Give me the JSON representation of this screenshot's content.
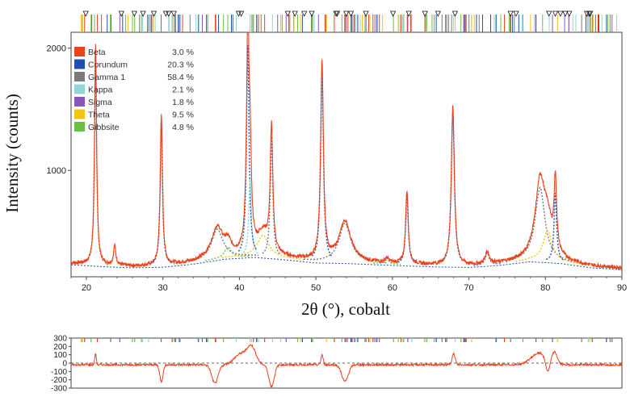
{
  "chart_data": [
    {
      "type": "line",
      "xlabel": "2θ (°), cobalt",
      "ylabel": "Intensity (counts)",
      "xlim": [
        18,
        90
      ],
      "ylim": [
        130,
        2130
      ],
      "x_ticks": [
        20,
        30,
        40,
        50,
        60,
        70,
        80,
        90
      ],
      "y_ticks": [
        1000,
        2000
      ],
      "grid": false,
      "legend_position": "top-left",
      "legend": [
        {
          "name": "Beta",
          "value": "3.0 %",
          "color": "#e8431d"
        },
        {
          "name": "Corundum",
          "value": "20.3 %",
          "color": "#1f4fb0"
        },
        {
          "name": "Gamma 1",
          "value": "58.4 %",
          "color": "#7a7a7a"
        },
        {
          "name": "Kappa",
          "value": "2.1 %",
          "color": "#8fd6d6"
        },
        {
          "name": "Sigma",
          "value": "1.8 %",
          "color": "#8a57b8"
        },
        {
          "name": "Theta",
          "value": "9.5 %",
          "color": "#f2c417"
        },
        {
          "name": "Gibbsite",
          "value": "4.8 %",
          "color": "#6cbf45"
        }
      ],
      "series": [
        {
          "name": "observed",
          "color": "#e8431d",
          "background": [
            [
              18,
              240
            ],
            [
              22,
              225
            ],
            [
              26,
              215
            ],
            [
              30,
              220
            ],
            [
              34,
              245
            ],
            [
              38,
              285
            ],
            [
              42,
              300
            ],
            [
              46,
              280
            ],
            [
              50,
              255
            ],
            [
              54,
              250
            ],
            [
              58,
              240
            ],
            [
              62,
              230
            ],
            [
              66,
              222
            ],
            [
              70,
              218
            ],
            [
              74,
              235
            ],
            [
              78,
              265
            ],
            [
              82,
              250
            ],
            [
              86,
              215
            ],
            [
              90,
              200
            ]
          ],
          "peaks": [
            {
              "x": 21.2,
              "h": 1800,
              "w": 0.16
            },
            {
              "x": 23.7,
              "h": 160,
              "w": 0.18
            },
            {
              "x": 29.8,
              "h": 1220,
              "w": 0.18
            },
            {
              "x": 37.1,
              "h": 250,
              "w": 0.9
            },
            {
              "x": 38.5,
              "h": 90,
              "w": 0.5
            },
            {
              "x": 41.1,
              "h": 1780,
              "w": 0.2
            },
            {
              "x": 41.4,
              "h": 650,
              "w": 0.2
            },
            {
              "x": 43.1,
              "h": 180,
              "w": 0.9
            },
            {
              "x": 44.2,
              "h": 1020,
              "w": 0.2
            },
            {
              "x": 50.8,
              "h": 1610,
              "w": 0.22
            },
            {
              "x": 53.8,
              "h": 330,
              "w": 0.9
            },
            {
              "x": 59.3,
              "h": 35,
              "w": 0.3
            },
            {
              "x": 61.9,
              "h": 600,
              "w": 0.2
            },
            {
              "x": 67.9,
              "h": 1300,
              "w": 0.24
            },
            {
              "x": 72.4,
              "h": 100,
              "w": 0.3
            },
            {
              "x": 79.3,
              "h": 620,
              "w": 0.75
            },
            {
              "x": 80.3,
              "h": 260,
              "w": 0.7
            },
            {
              "x": 81.3,
              "h": 580,
              "w": 0.2
            }
          ]
        }
      ]
    },
    {
      "type": "line",
      "ylim": [
        -300,
        300
      ],
      "y_ticks": [
        300,
        200,
        100,
        0,
        -100,
        -200,
        -300
      ],
      "series": [
        {
          "name": "difference",
          "color": "#e8431d",
          "baseline": -20,
          "features": [
            {
              "x": 21.2,
              "a": 130,
              "w": 0.15
            },
            {
              "x": 29.8,
              "a": -200,
              "w": 0.3
            },
            {
              "x": 36.8,
              "a": -220,
              "w": 0.6
            },
            {
              "x": 40.2,
              "a": 130,
              "w": 1.2
            },
            {
              "x": 41.6,
              "a": 200,
              "w": 0.8
            },
            {
              "x": 44.2,
              "a": -260,
              "w": 0.5
            },
            {
              "x": 50.8,
              "a": 120,
              "w": 0.2
            },
            {
              "x": 53.8,
              "a": -200,
              "w": 0.6
            },
            {
              "x": 68.0,
              "a": 130,
              "w": 0.3
            },
            {
              "x": 79.2,
              "a": 140,
              "w": 1.5
            },
            {
              "x": 80.3,
              "a": -160,
              "w": 0.4
            },
            {
              "x": 81.2,
              "a": 130,
              "w": 0.5
            }
          ]
        }
      ]
    }
  ]
}
